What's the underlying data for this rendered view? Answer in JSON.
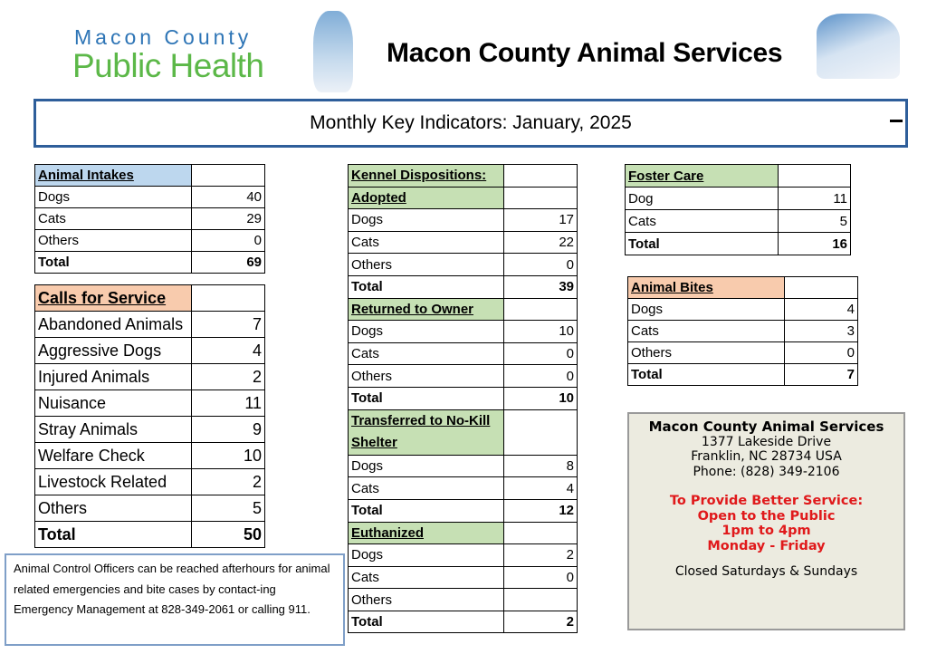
{
  "header": {
    "logo_line1": "Macon County",
    "logo_line2": "Public Health",
    "title": "Macon County Animal Services",
    "banner": "Monthly Key Indicators: January, 2025"
  },
  "colors": {
    "blue_header": "#bdd7ee",
    "peach_header": "#f8cbad",
    "green_header": "#c6e0b4",
    "banner_border": "#2e5e9a",
    "info_red": "#e0191b"
  },
  "tables": {
    "intakes": {
      "title": "Animal Intakes",
      "rows": [
        [
          "Dogs",
          "40"
        ],
        [
          "Cats",
          "29"
        ],
        [
          "Others",
          "0"
        ],
        [
          "Total",
          "69"
        ]
      ]
    },
    "calls": {
      "title": "Calls for Service",
      "rows": [
        [
          "Abandoned Animals",
          "7"
        ],
        [
          "Aggressive Dogs",
          "4"
        ],
        [
          "Injured Animals",
          "2"
        ],
        [
          "Nuisance",
          "11"
        ],
        [
          "Stray Animals",
          "9"
        ],
        [
          "Welfare Check",
          "10"
        ],
        [
          "Livestock Related",
          "2"
        ],
        [
          "Others",
          "5"
        ],
        [
          "Total",
          "50"
        ]
      ]
    },
    "kennel": {
      "title": "Kennel Dispositions:",
      "sections": [
        {
          "title": "Adopted",
          "rows": [
            [
              "Dogs",
              "17"
            ],
            [
              "Cats",
              "22"
            ],
            [
              "Others",
              "0"
            ],
            [
              "Total",
              "39"
            ]
          ]
        },
        {
          "title": "Returned to Owner",
          "rows": [
            [
              "Dogs",
              "10"
            ],
            [
              "Cats",
              "0"
            ],
            [
              "Others",
              "0"
            ],
            [
              "Total",
              "10"
            ]
          ]
        },
        {
          "title": "Transferred to No-Kill Shelter",
          "rows": [
            [
              "Dogs",
              "8"
            ],
            [
              "Cats",
              "4"
            ],
            [
              "Total",
              "12"
            ]
          ]
        },
        {
          "title": "Euthanized",
          "rows": [
            [
              "Dogs",
              "2"
            ],
            [
              "Cats",
              "0"
            ],
            [
              "Others",
              ""
            ],
            [
              "Total",
              "2"
            ]
          ]
        }
      ]
    },
    "foster": {
      "title": "Foster Care",
      "rows": [
        [
          "Dog",
          "11"
        ],
        [
          "Cats",
          "5"
        ],
        [
          "Total",
          "16"
        ]
      ]
    },
    "bites": {
      "title": "Animal Bites",
      "rows": [
        [
          "Dogs",
          "4"
        ],
        [
          "Cats",
          "3"
        ],
        [
          "Others",
          "0"
        ],
        [
          "Total",
          "7"
        ]
      ]
    }
  },
  "info": {
    "name": "Macon County Animal Services",
    "address": "1377 Lakeside Drive",
    "city": "Franklin, NC 28734 USA",
    "phone": "Phone: (828) 349-2106",
    "notice1": "To Provide Better Service:",
    "notice2": "Open to the Public",
    "notice3": "1pm to 4pm",
    "notice4": "Monday - Friday",
    "closed": "Closed Saturdays & Sundays"
  },
  "note": "Animal Control Officers can be reached afterhours for animal related emergencies and bite cases by contact-ing Emergency Management at 828-349-2061 or calling 911."
}
